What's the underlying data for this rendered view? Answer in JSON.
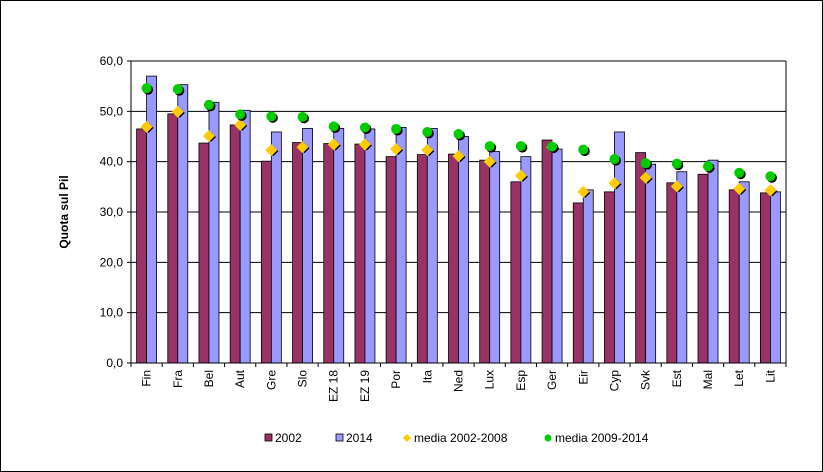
{
  "chart_data": {
    "type": "bar",
    "ylabel": "Quota sul Pil",
    "ylim": [
      0,
      60
    ],
    "yticks": [
      "0,0",
      "10,0",
      "20,0",
      "30,0",
      "40,0",
      "50,0",
      "60,0"
    ],
    "ytick_values": [
      0,
      10,
      20,
      30,
      40,
      50,
      60
    ],
    "grid": true,
    "legend_position": "bottom",
    "categories": [
      "Fin",
      "Fra",
      "Bel",
      "Aut",
      "Gre",
      "Slo",
      "EZ 18",
      "EZ 19",
      "Por",
      "Ita",
      "Ned",
      "Lux",
      "Esp",
      "Ger",
      "Eir",
      "Cyp",
      "Svk",
      "Est",
      "Mal",
      "Let",
      "Lit"
    ],
    "series": [
      {
        "name": "2002",
        "kind": "bar",
        "color": "#993366",
        "values": [
          46.5,
          49.5,
          43.7,
          47.3,
          40.1,
          43.8,
          43.6,
          43.5,
          41.0,
          41.4,
          41.5,
          40.3,
          36.0,
          44.3,
          31.8,
          34.0,
          41.8,
          35.8,
          37.5,
          34.4,
          33.8
        ]
      },
      {
        "name": "2014",
        "kind": "bar",
        "color": "#9999FF",
        "values": [
          57.0,
          55.3,
          51.8,
          50.2,
          45.9,
          46.6,
          46.6,
          46.5,
          46.8,
          46.6,
          45.0,
          42.0,
          41.0,
          42.5,
          34.4,
          45.9,
          39.5,
          38.0,
          40.3,
          36.0,
          34.0
        ]
      },
      {
        "name": "media 2002-2008",
        "kind": "marker",
        "color": "#FFCC00",
        "values": [
          46.9,
          49.9,
          45.1,
          47.3,
          42.3,
          42.9,
          43.4,
          43.4,
          42.5,
          42.3,
          41.1,
          40.0,
          37.2,
          42.9,
          34.0,
          35.7,
          36.8,
          35.1,
          38.9,
          34.6,
          34.3
        ]
      },
      {
        "name": "media 2009-2014",
        "kind": "marker",
        "color": "#00CC00",
        "values": [
          54.6,
          54.4,
          51.3,
          49.4,
          49.0,
          48.9,
          47.0,
          46.8,
          46.5,
          45.9,
          45.5,
          43.1,
          43.1,
          43.0,
          42.4,
          40.5,
          39.7,
          39.6,
          39.1,
          37.8,
          37.1
        ]
      }
    ]
  }
}
